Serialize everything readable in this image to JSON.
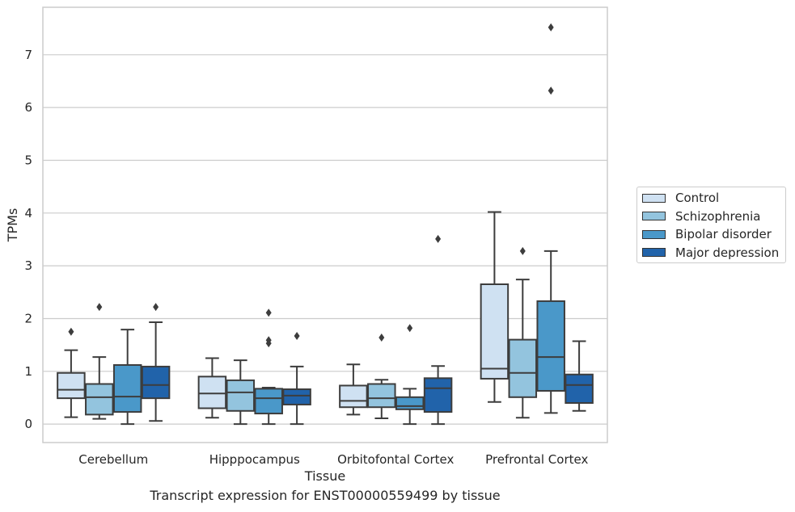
{
  "caption": "Transcript expression for ENST00000559499 by tissue",
  "chart_data": {
    "type": "box",
    "xlabel": "Tissue",
    "ylabel": "TPMs",
    "ylim": [
      -0.35,
      7.9
    ],
    "yticks": [
      0,
      1,
      2,
      3,
      4,
      5,
      6,
      7
    ],
    "grid": "horizontal",
    "legend_position": "right",
    "categories": [
      "Cerebellum",
      "Hipppocampus",
      "Orbitofontal Cortex",
      "Prefrontal Cortex"
    ],
    "series": [
      {
        "name": "Control",
        "color": "#cfe1f2",
        "boxes": [
          {
            "whisker_low": 0.13,
            "q1": 0.49,
            "median": 0.65,
            "q3": 0.97,
            "whisker_high": 1.4,
            "outliers": [
              1.75
            ]
          },
          {
            "whisker_low": 0.12,
            "q1": 0.3,
            "median": 0.58,
            "q3": 0.9,
            "whisker_high": 1.25,
            "outliers": []
          },
          {
            "whisker_low": 0.18,
            "q1": 0.32,
            "median": 0.44,
            "q3": 0.73,
            "whisker_high": 1.13,
            "outliers": []
          },
          {
            "whisker_low": 0.42,
            "q1": 0.86,
            "median": 1.05,
            "q3": 2.65,
            "whisker_high": 4.02,
            "outliers": []
          }
        ]
      },
      {
        "name": "Schizophrenia",
        "color": "#93c4de",
        "boxes": [
          {
            "whisker_low": 0.1,
            "q1": 0.18,
            "median": 0.51,
            "q3": 0.76,
            "whisker_high": 1.27,
            "outliers": [
              2.22
            ]
          },
          {
            "whisker_low": 0.0,
            "q1": 0.25,
            "median": 0.6,
            "q3": 0.83,
            "whisker_high": 1.21,
            "outliers": []
          },
          {
            "whisker_low": 0.11,
            "q1": 0.32,
            "median": 0.49,
            "q3": 0.76,
            "whisker_high": 0.84,
            "outliers": [
              1.64
            ]
          },
          {
            "whisker_low": 0.12,
            "q1": 0.51,
            "median": 0.97,
            "q3": 1.6,
            "whisker_high": 2.74,
            "outliers": [
              3.28
            ]
          }
        ]
      },
      {
        "name": "Bipolar disorder",
        "color": "#4a98c9",
        "boxes": [
          {
            "whisker_low": 0.0,
            "q1": 0.23,
            "median": 0.52,
            "q3": 1.12,
            "whisker_high": 1.79,
            "outliers": []
          },
          {
            "whisker_low": 0.0,
            "q1": 0.2,
            "median": 0.49,
            "q3": 0.67,
            "whisker_high": 0.69,
            "outliers": [
              1.53,
              1.59,
              2.11
            ]
          },
          {
            "whisker_low": 0.0,
            "q1": 0.28,
            "median": 0.34,
            "q3": 0.51,
            "whisker_high": 0.67,
            "outliers": [
              1.82
            ]
          },
          {
            "whisker_low": 0.21,
            "q1": 0.63,
            "median": 1.27,
            "q3": 2.33,
            "whisker_high": 3.28,
            "outliers": [
              6.32,
              7.52
            ]
          }
        ]
      },
      {
        "name": "Major depression",
        "color": "#2163aa",
        "boxes": [
          {
            "whisker_low": 0.06,
            "q1": 0.49,
            "median": 0.74,
            "q3": 1.09,
            "whisker_high": 1.93,
            "outliers": [
              2.22
            ]
          },
          {
            "whisker_low": 0.0,
            "q1": 0.37,
            "median": 0.54,
            "q3": 0.66,
            "whisker_high": 1.09,
            "outliers": [
              1.67
            ]
          },
          {
            "whisker_low": 0.0,
            "q1": 0.23,
            "median": 0.68,
            "q3": 0.87,
            "whisker_high": 1.1,
            "outliers": [
              3.51
            ]
          },
          {
            "whisker_low": 0.25,
            "q1": 0.4,
            "median": 0.74,
            "q3": 0.94,
            "whisker_high": 1.57,
            "outliers": []
          }
        ]
      }
    ]
  }
}
